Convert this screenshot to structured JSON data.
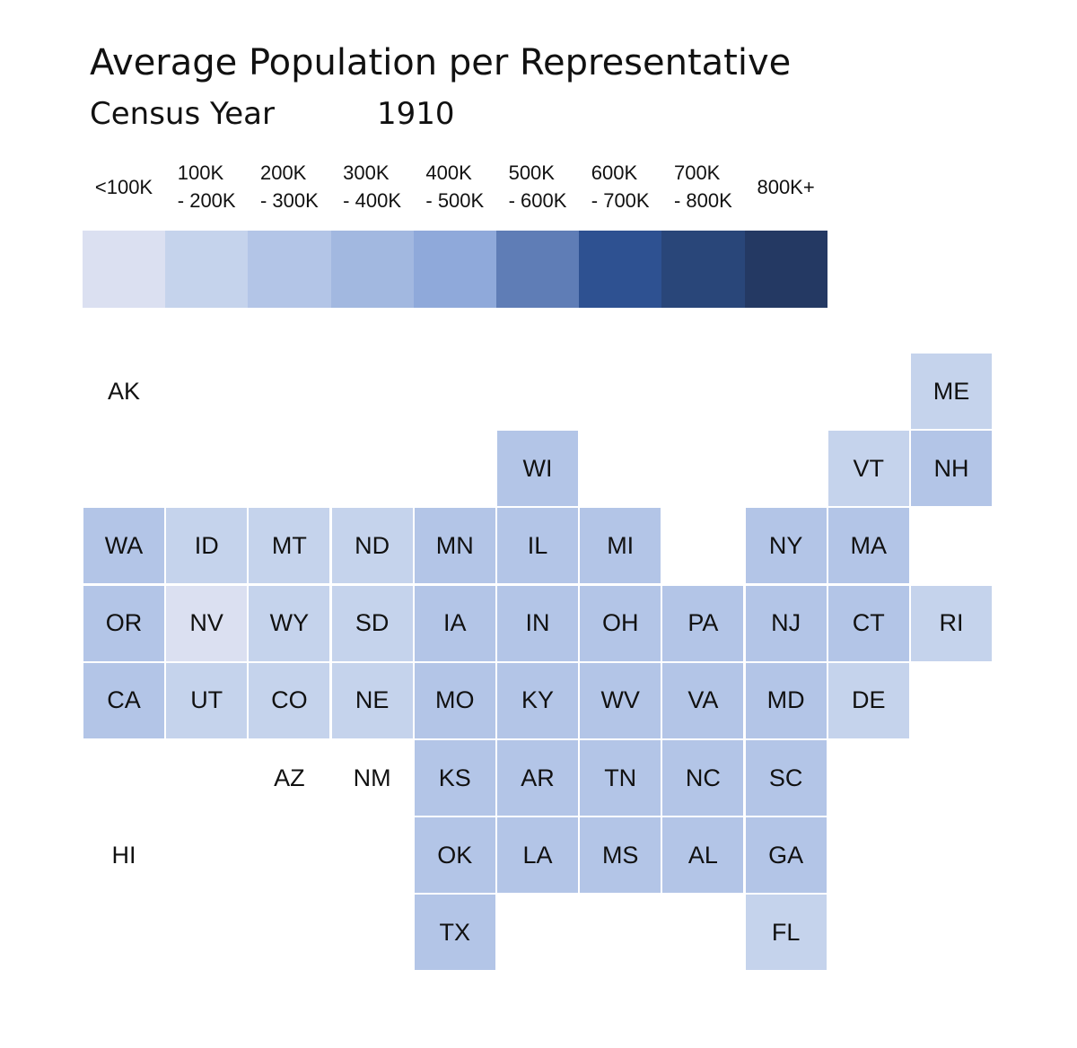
{
  "chart_data": {
    "type": "tile-map",
    "title": "Average Population per Representative",
    "census_label": "Census Year",
    "census_year": "1910",
    "legend": {
      "bins": [
        {
          "label": "<100K",
          "color": "#dbe0f1"
        },
        {
          "label": "100K\n- 200K",
          "color": "#c5d3ec"
        },
        {
          "label": "200K\n- 300K",
          "color": "#b3c5e7"
        },
        {
          "label": "300K\n- 400K",
          "color": "#a2b8e0"
        },
        {
          "label": "400K\n- 500K",
          "color": "#8fa9da"
        },
        {
          "label": "500K\n- 600K",
          "color": "#5f7db6"
        },
        {
          "label": "600K\n- 700K",
          "color": "#2e5191"
        },
        {
          "label": "700K\n- 800K",
          "color": "#294679"
        },
        {
          "label": "800K+",
          "color": "#243963"
        }
      ]
    },
    "states": [
      {
        "abbr": "AK",
        "row": 0,
        "col": 0,
        "bin": null
      },
      {
        "abbr": "ME",
        "row": 0,
        "col": 10,
        "bin": 1
      },
      {
        "abbr": "WI",
        "row": 1,
        "col": 5,
        "bin": 2
      },
      {
        "abbr": "VT",
        "row": 1,
        "col": 9,
        "bin": 1
      },
      {
        "abbr": "NH",
        "row": 1,
        "col": 10,
        "bin": 2
      },
      {
        "abbr": "WA",
        "row": 2,
        "col": 0,
        "bin": 2
      },
      {
        "abbr": "ID",
        "row": 2,
        "col": 1,
        "bin": 1
      },
      {
        "abbr": "MT",
        "row": 2,
        "col": 2,
        "bin": 1
      },
      {
        "abbr": "ND",
        "row": 2,
        "col": 3,
        "bin": 1
      },
      {
        "abbr": "MN",
        "row": 2,
        "col": 4,
        "bin": 2
      },
      {
        "abbr": "IL",
        "row": 2,
        "col": 5,
        "bin": 2
      },
      {
        "abbr": "MI",
        "row": 2,
        "col": 6,
        "bin": 2
      },
      {
        "abbr": "NY",
        "row": 2,
        "col": 8,
        "bin": 2
      },
      {
        "abbr": "MA",
        "row": 2,
        "col": 9,
        "bin": 2
      },
      {
        "abbr": "OR",
        "row": 3,
        "col": 0,
        "bin": 2
      },
      {
        "abbr": "NV",
        "row": 3,
        "col": 1,
        "bin": 0
      },
      {
        "abbr": "WY",
        "row": 3,
        "col": 2,
        "bin": 1
      },
      {
        "abbr": "SD",
        "row": 3,
        "col": 3,
        "bin": 1
      },
      {
        "abbr": "IA",
        "row": 3,
        "col": 4,
        "bin": 2
      },
      {
        "abbr": "IN",
        "row": 3,
        "col": 5,
        "bin": 2
      },
      {
        "abbr": "OH",
        "row": 3,
        "col": 6,
        "bin": 2
      },
      {
        "abbr": "PA",
        "row": 3,
        "col": 7,
        "bin": 2
      },
      {
        "abbr": "NJ",
        "row": 3,
        "col": 8,
        "bin": 2
      },
      {
        "abbr": "CT",
        "row": 3,
        "col": 9,
        "bin": 2
      },
      {
        "abbr": "RI",
        "row": 3,
        "col": 10,
        "bin": 1
      },
      {
        "abbr": "CA",
        "row": 4,
        "col": 0,
        "bin": 2
      },
      {
        "abbr": "UT",
        "row": 4,
        "col": 1,
        "bin": 1
      },
      {
        "abbr": "CO",
        "row": 4,
        "col": 2,
        "bin": 1
      },
      {
        "abbr": "NE",
        "row": 4,
        "col": 3,
        "bin": 1
      },
      {
        "abbr": "MO",
        "row": 4,
        "col": 4,
        "bin": 2
      },
      {
        "abbr": "KY",
        "row": 4,
        "col": 5,
        "bin": 2
      },
      {
        "abbr": "WV",
        "row": 4,
        "col": 6,
        "bin": 2
      },
      {
        "abbr": "VA",
        "row": 4,
        "col": 7,
        "bin": 2
      },
      {
        "abbr": "MD",
        "row": 4,
        "col": 8,
        "bin": 2
      },
      {
        "abbr": "DE",
        "row": 4,
        "col": 9,
        "bin": 1
      },
      {
        "abbr": "AZ",
        "row": 5,
        "col": 2,
        "bin": null
      },
      {
        "abbr": "NM",
        "row": 5,
        "col": 3,
        "bin": null
      },
      {
        "abbr": "KS",
        "row": 5,
        "col": 4,
        "bin": 2
      },
      {
        "abbr": "AR",
        "row": 5,
        "col": 5,
        "bin": 2
      },
      {
        "abbr": "TN",
        "row": 5,
        "col": 6,
        "bin": 2
      },
      {
        "abbr": "NC",
        "row": 5,
        "col": 7,
        "bin": 2
      },
      {
        "abbr": "SC",
        "row": 5,
        "col": 8,
        "bin": 2
      },
      {
        "abbr": "HI",
        "row": 6,
        "col": 0,
        "bin": null
      },
      {
        "abbr": "OK",
        "row": 6,
        "col": 4,
        "bin": 2
      },
      {
        "abbr": "LA",
        "row": 6,
        "col": 5,
        "bin": 2
      },
      {
        "abbr": "MS",
        "row": 6,
        "col": 6,
        "bin": 2
      },
      {
        "abbr": "AL",
        "row": 6,
        "col": 7,
        "bin": 2
      },
      {
        "abbr": "GA",
        "row": 6,
        "col": 8,
        "bin": 2
      },
      {
        "abbr": "TX",
        "row": 7,
        "col": 4,
        "bin": 2
      },
      {
        "abbr": "FL",
        "row": 7,
        "col": 8,
        "bin": 1
      }
    ]
  }
}
